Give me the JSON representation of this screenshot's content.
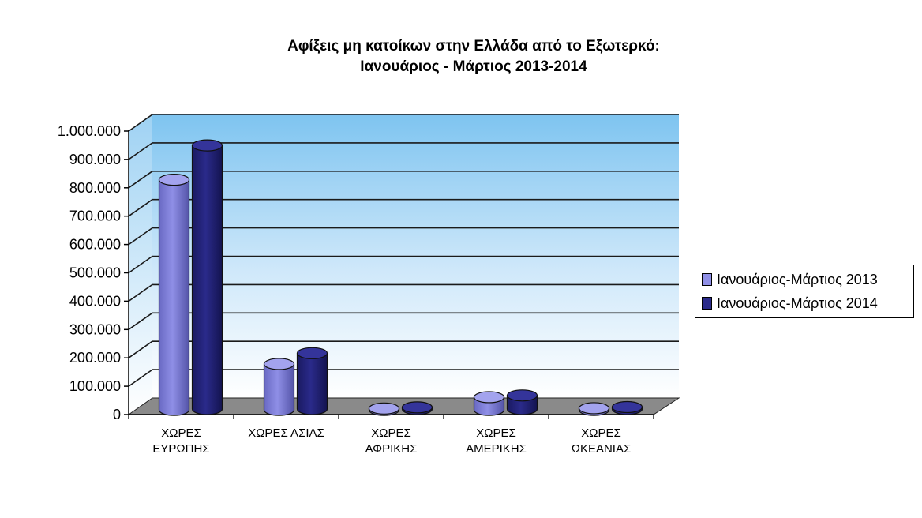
{
  "chart_data": {
    "type": "bar",
    "title_lines": [
      "Αφίξεις μη κατοίκων στην Ελλάδα από το Εξωτερκό:",
      "Ιανουάριος - Μάρτιος  2013-2014"
    ],
    "categories": [
      [
        "ΧΩΡΕΣ",
        "ΕΥΡΩΠΗΣ"
      ],
      [
        "ΧΩΡΕΣ ΑΣΙΑΣ"
      ],
      [
        "ΧΩΡΕΣ",
        "ΑΦΡΙΚΗΣ"
      ],
      [
        "ΧΩΡΕΣ",
        "ΑΜΕΡΙΚΗΣ"
      ],
      [
        "ΧΩΡΕΣ",
        "ΩΚΕΑΝΙΑΣ"
      ]
    ],
    "series": [
      {
        "name": "Ιανουάριος-Μάρτιος 2013",
        "color": "#8f8fe6",
        "values": [
          812000,
          162000,
          5000,
          45000,
          6000
        ]
      },
      {
        "name": "Ιανουάριος-Μάρτιος 2014",
        "color": "#2a2a8a",
        "values": [
          930000,
          197000,
          6000,
          48000,
          7000
        ]
      }
    ],
    "ylim": [
      0,
      1000000
    ],
    "yticks": [
      "0",
      "100.000",
      "200.000",
      "300.000",
      "400.000",
      "500.000",
      "600.000",
      "700.000",
      "800.000",
      "900.000",
      "1.000.000"
    ],
    "grid": true,
    "legend_position": "right"
  }
}
